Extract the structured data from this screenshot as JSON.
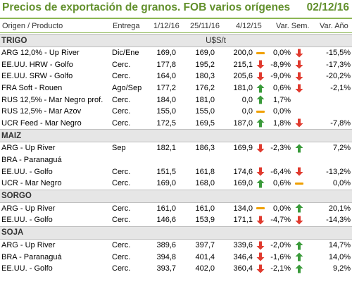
{
  "header": {
    "title": "Precios de exportación de granos. FOB varios orígenes",
    "date": "02/12/16"
  },
  "columns": {
    "origen": "Origen / Producto",
    "entrega": "Entrega",
    "c1": "1/12/16",
    "c2": "25/11/16",
    "c3": "4/12/15",
    "var_sem": "Var. Sem.",
    "var_anio": "Var. Año"
  },
  "sections": [
    {
      "name": "TRIGO",
      "unit": "U$S/t",
      "rows": [
        {
          "origen": "ARG 12,0% - Up River",
          "entrega": "Dic/Ene",
          "c1": "169,0",
          "c2": "169,0",
          "c3": "200,0",
          "ind_sem": "flat",
          "var_sem": "0,0%",
          "ind_anio": "down",
          "var_anio": "-15,5%"
        },
        {
          "origen": "EE.UU. HRW - Golfo",
          "entrega": "Cerc.",
          "c1": "177,8",
          "c2": "195,2",
          "c3": "215,1",
          "ind_sem": "down",
          "var_sem": "-8,9%",
          "ind_anio": "down",
          "var_anio": "-17,3%"
        },
        {
          "origen": "EE.UU. SRW - Golfo",
          "entrega": "Cerc.",
          "c1": "164,0",
          "c2": "180,3",
          "c3": "205,6",
          "ind_sem": "down",
          "var_sem": "-9,0%",
          "ind_anio": "down",
          "var_anio": "-20,2%"
        },
        {
          "origen": "FRA Soft - Rouen",
          "entrega": "Ago/Sep",
          "c1": "177,2",
          "c2": "176,2",
          "c3": "181,0",
          "ind_sem": "up",
          "var_sem": "0,6%",
          "ind_anio": "down",
          "var_anio": "-2,1%"
        },
        {
          "origen": "RUS 12,5% - Mar Negro prof.",
          "entrega": "Cerc.",
          "c1": "184,0",
          "c2": "181,0",
          "c3": "0,0",
          "ind_sem": "up",
          "var_sem": "1,7%",
          "ind_anio": "",
          "var_anio": ""
        },
        {
          "origen": "RUS 12,5% - Mar Azov",
          "entrega": "Cerc.",
          "c1": "155,0",
          "c2": "155,0",
          "c3": "0,0",
          "ind_sem": "flat",
          "var_sem": "0,0%",
          "ind_anio": "",
          "var_anio": ""
        },
        {
          "origen": "UCR Feed - Mar Negro",
          "entrega": "Cerc.",
          "c1": "172,5",
          "c2": "169,5",
          "c3": "187,0",
          "ind_sem": "up",
          "var_sem": "1,8%",
          "ind_anio": "down",
          "var_anio": "-7,8%"
        }
      ]
    },
    {
      "name": "MAIZ",
      "unit": "",
      "rows": [
        {
          "origen": "ARG - Up River",
          "entrega": "Sep",
          "c1": "182,1",
          "c2": "186,3",
          "c3": "169,9",
          "ind_sem": "down",
          "var_sem": "-2,3%",
          "ind_anio": "up",
          "var_anio": "7,2%"
        },
        {
          "origen": "BRA - Paranaguá",
          "entrega": "",
          "c1": "",
          "c2": "",
          "c3": "",
          "ind_sem": "",
          "var_sem": "",
          "ind_anio": "",
          "var_anio": ""
        },
        {
          "origen": "EE.UU. - Golfo",
          "entrega": "Cerc.",
          "c1": "151,5",
          "c2": "161,8",
          "c3": "174,6",
          "ind_sem": "down",
          "var_sem": "-6,4%",
          "ind_anio": "down",
          "var_anio": "-13,2%"
        },
        {
          "origen": "UCR - Mar Negro",
          "entrega": "Cerc.",
          "c1": "169,0",
          "c2": "168,0",
          "c3": "169,0",
          "ind_sem": "up",
          "var_sem": "0,6%",
          "ind_anio": "flat",
          "var_anio": "0,0%"
        }
      ]
    },
    {
      "name": "SORGO",
      "unit": "",
      "rows": [
        {
          "origen": "ARG - Up River",
          "entrega": "Cerc.",
          "c1": "161,0",
          "c2": "161,0",
          "c3": "134,0",
          "ind_sem": "flat",
          "var_sem": "0,0%",
          "ind_anio": "up",
          "var_anio": "20,1%"
        },
        {
          "origen": "EE.UU. - Golfo",
          "entrega": "Cerc.",
          "c1": "146,6",
          "c2": "153,9",
          "c3": "171,1",
          "ind_sem": "down",
          "var_sem": "-4,7%",
          "ind_anio": "down",
          "var_anio": "-14,3%"
        }
      ]
    },
    {
      "name": "SOJA",
      "unit": "",
      "rows": [
        {
          "origen": "ARG - Up River",
          "entrega": "Cerc.",
          "c1": "389,6",
          "c2": "397,7",
          "c3": "339,6",
          "ind_sem": "down",
          "var_sem": "-2,0%",
          "ind_anio": "up",
          "var_anio": "14,7%"
        },
        {
          "origen": "BRA - Paranaguá",
          "entrega": "Cerc.",
          "c1": "394,8",
          "c2": "401,4",
          "c3": "346,4",
          "ind_sem": "down",
          "var_sem": "-1,6%",
          "ind_anio": "up",
          "var_anio": "14,0%"
        },
        {
          "origen": "EE.UU. - Golfo",
          "entrega": "Cerc.",
          "c1": "393,7",
          "c2": "402,0",
          "c3": "360,4",
          "ind_sem": "down",
          "var_sem": "-2,1%",
          "ind_anio": "up",
          "var_anio": "9,2%"
        }
      ]
    }
  ],
  "colors": {
    "title": "#62902c",
    "up": "#3a9a3a",
    "down": "#e03a2e",
    "flat": "#f0a000",
    "section_bg": "#e6e6e6"
  }
}
